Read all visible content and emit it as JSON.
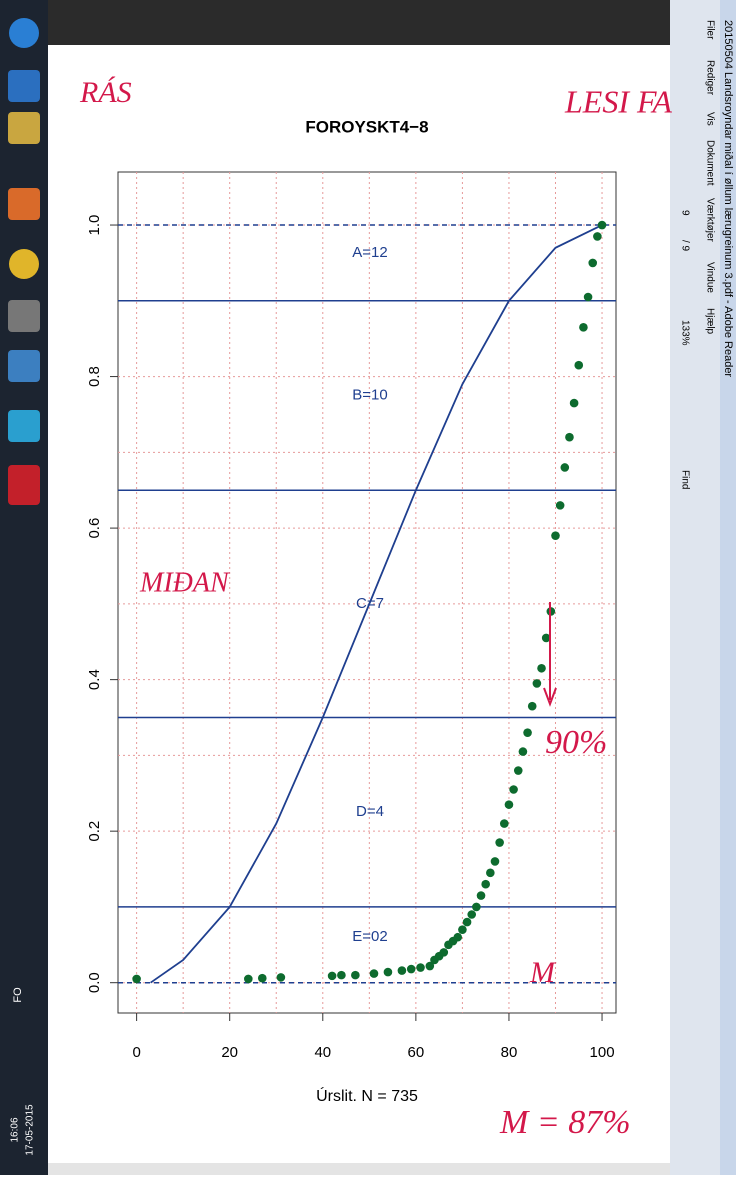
{
  "taskbar": {
    "language": "FO",
    "time": "16:06",
    "date": "17-05-2015"
  },
  "window": {
    "title": "20150504 Landsroyndar miðal í øllum lærugreinum 3.pdf - Adobe Reader",
    "menu": [
      "Filer",
      "Rediger",
      "Vis",
      "Dokument",
      "Værktøjer",
      "Vindue",
      "Hjælp"
    ],
    "page": "9",
    "pages": "/ 9",
    "zoom": "133%",
    "find": "Find"
  },
  "chart_data": {
    "type": "scatter",
    "title": "FOROYSKT4−8",
    "x_label": "Úrslit. N = 735",
    "xlim": [
      -4,
      103
    ],
    "ylim": [
      -0.04,
      1.07
    ],
    "xticks": [
      0,
      20,
      40,
      60,
      80,
      100
    ],
    "yticks": [
      {
        "value": 0,
        "label": "0.0"
      },
      0.2,
      0.4,
      0.6,
      0.8,
      {
        "value": 1,
        "label": "1.0"
      }
    ],
    "minor_xticks": [
      10,
      30,
      50,
      70,
      90
    ],
    "minor_yticks": [
      0.1,
      0.3,
      0.5,
      0.7,
      0.9
    ],
    "grid": true,
    "hlines": [
      0.9,
      0.65,
      0.35,
      0.1
    ],
    "dashed_hlines": [
      0,
      1
    ],
    "band_labels": [
      "A=12",
      "B=10",
      "C=7",
      "D=4",
      "E=02"
    ],
    "curve": {
      "color": "#1f3f8f",
      "x": [
        3,
        10,
        20,
        30,
        40,
        50,
        60,
        70,
        80,
        90,
        100
      ],
      "values": [
        0,
        0.03,
        0.1,
        0.21,
        0.35,
        0.5,
        0.65,
        0.79,
        0.9,
        0.97,
        1.0
      ]
    },
    "points": {
      "color": "#0d6b2e",
      "x": [
        0,
        24,
        27,
        31,
        42,
        44,
        47,
        51,
        54,
        57,
        59,
        61,
        63,
        64,
        65,
        66,
        67,
        68,
        69,
        70,
        71,
        72,
        73,
        74,
        75,
        76,
        77,
        78,
        79,
        80,
        81,
        82,
        83,
        84,
        85,
        86,
        87,
        88,
        89,
        90,
        91,
        92,
        93,
        94,
        95,
        96,
        97,
        98,
        99,
        100
      ],
      "values": [
        0.005,
        0.005,
        0.006,
        0.007,
        0.009,
        0.01,
        0.01,
        0.012,
        0.014,
        0.016,
        0.018,
        0.02,
        0.022,
        0.03,
        0.035,
        0.04,
        0.05,
        0.055,
        0.06,
        0.07,
        0.08,
        0.09,
        0.1,
        0.115,
        0.13,
        0.145,
        0.16,
        0.185,
        0.21,
        0.235,
        0.255,
        0.28,
        0.305,
        0.33,
        0.365,
        0.395,
        0.415,
        0.455,
        0.49,
        0.59,
        0.63,
        0.68,
        0.72,
        0.765,
        0.815,
        0.865,
        0.905,
        0.95,
        0.985,
        1.0
      ]
    },
    "annotations": [
      "RÁS",
      "LESI FA",
      "MIÐAN",
      "90%",
      "M",
      "M = 87%"
    ]
  }
}
